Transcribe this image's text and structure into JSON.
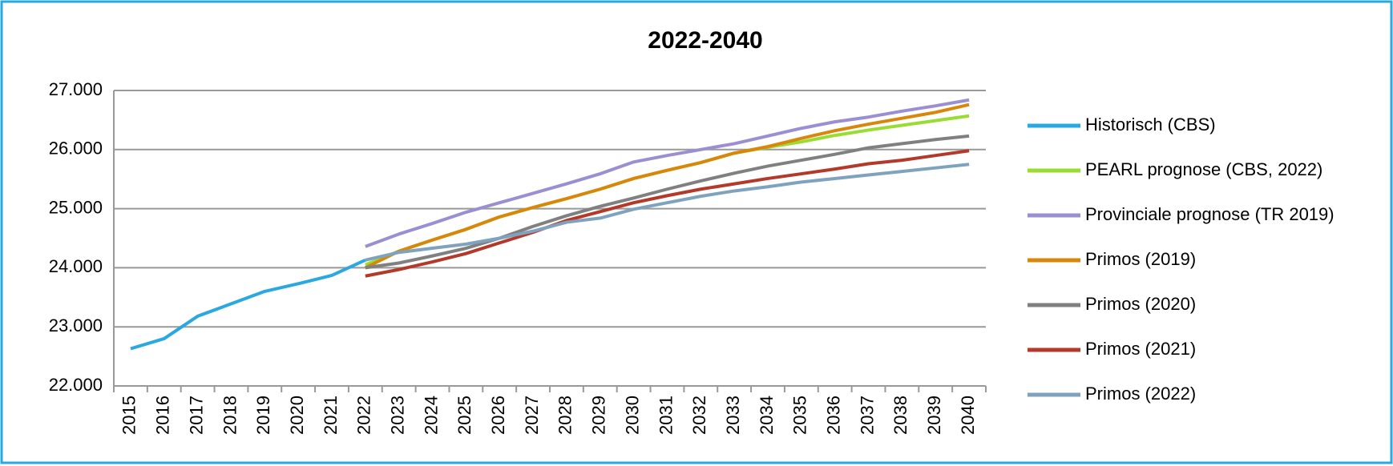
{
  "chart_data": {
    "type": "line",
    "title": "2022-2040",
    "categories": [
      "2015",
      "2016",
      "2017",
      "2018",
      "2019",
      "2020",
      "2021",
      "2022",
      "2023",
      "2024",
      "2025",
      "2026",
      "2027",
      "2028",
      "2029",
      "2030",
      "2031",
      "2032",
      "2033",
      "2034",
      "2035",
      "2036",
      "2037",
      "2038",
      "2039",
      "2040"
    ],
    "ylim": [
      22000,
      27000
    ],
    "yticks": [
      {
        "value": 22000,
        "label": "22.000"
      },
      {
        "value": 23000,
        "label": "23.000"
      },
      {
        "value": 24000,
        "label": "24.000"
      },
      {
        "value": 25000,
        "label": "25.000"
      },
      {
        "value": 26000,
        "label": "26.000"
      },
      {
        "value": 27000,
        "label": "27.000"
      }
    ],
    "grid": true,
    "legend": "right",
    "series": [
      {
        "name": "Historisch (CBS)",
        "color": "#29a9e0",
        "values": [
          22630,
          22800,
          23180,
          23390,
          23600,
          23730,
          23870,
          24130,
          null,
          null,
          null,
          null,
          null,
          null,
          null,
          null,
          null,
          null,
          null,
          null,
          null,
          null,
          null,
          null,
          null,
          null
        ]
      },
      {
        "name": "PEARL prognose (CBS, 2022)",
        "color": "#99dd33",
        "values": [
          null,
          null,
          null,
          null,
          null,
          null,
          null,
          24050,
          24280,
          24470,
          24650,
          24860,
          25020,
          25170,
          25330,
          25510,
          25650,
          25780,
          25940,
          26040,
          26130,
          26240,
          26330,
          26410,
          26490,
          26570
        ]
      },
      {
        "name": "Provinciale prognose (TR 2019)",
        "color": "#9b8fd1",
        "values": [
          null,
          null,
          null,
          null,
          null,
          null,
          null,
          24360,
          24570,
          24750,
          24940,
          25100,
          25260,
          25420,
          25590,
          25790,
          25900,
          26000,
          26100,
          26230,
          26360,
          26470,
          26550,
          26650,
          26740,
          26840
        ]
      },
      {
        "name": "Primos (2019)",
        "color": "#d9870b",
        "values": [
          null,
          null,
          null,
          null,
          null,
          null,
          null,
          24000,
          24280,
          24470,
          24650,
          24860,
          25020,
          25170,
          25330,
          25510,
          25650,
          25780,
          25940,
          26050,
          26190,
          26320,
          26430,
          26530,
          26630,
          26760
        ]
      },
      {
        "name": "Primos (2020)",
        "color": "#808080",
        "values": [
          null,
          null,
          null,
          null,
          null,
          null,
          null,
          24000,
          24080,
          24200,
          24330,
          24500,
          24700,
          24880,
          25040,
          25180,
          25330,
          25470,
          25600,
          25720,
          25820,
          25920,
          26030,
          26100,
          26170,
          26230
        ]
      },
      {
        "name": "Primos (2021)",
        "color": "#b33a2a",
        "values": [
          null,
          null,
          null,
          null,
          null,
          null,
          null,
          23860,
          23970,
          24100,
          24240,
          24420,
          24600,
          24800,
          24950,
          25100,
          25220,
          25330,
          25420,
          25510,
          25590,
          25670,
          25760,
          25820,
          25900,
          25980
        ]
      },
      {
        "name": "Primos (2022)",
        "color": "#7fa3be",
        "values": [
          null,
          null,
          null,
          null,
          null,
          null,
          null,
          24130,
          24260,
          24330,
          24400,
          24500,
          24620,
          24770,
          24840,
          24990,
          25100,
          25210,
          25300,
          25370,
          25450,
          25510,
          25570,
          25630,
          25690,
          25750
        ]
      }
    ]
  }
}
